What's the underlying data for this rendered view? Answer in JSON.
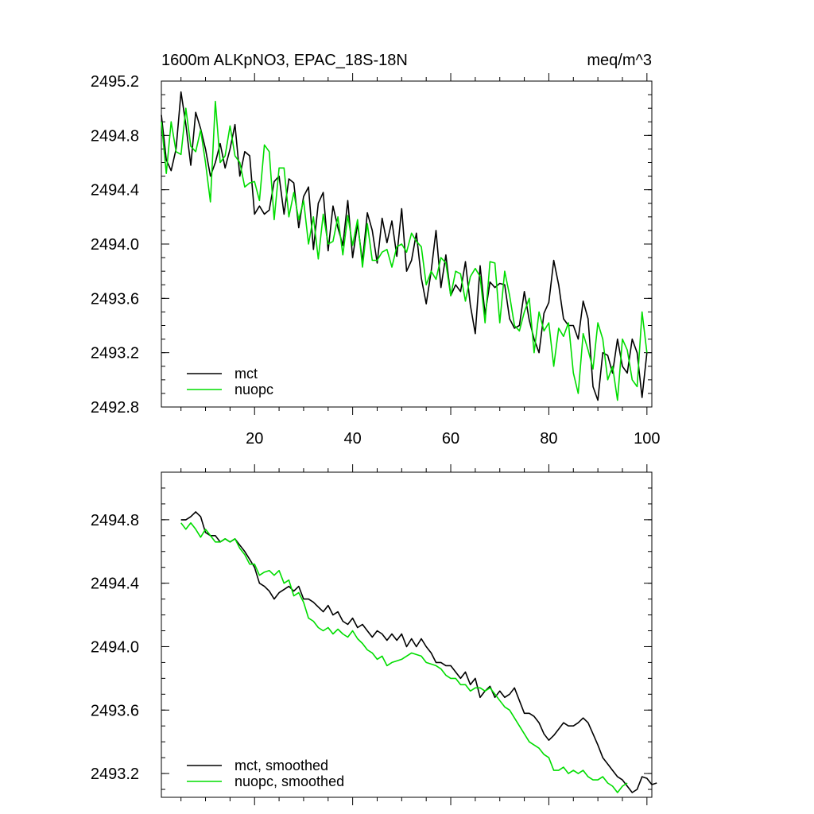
{
  "chart_data": [
    {
      "type": "line",
      "title": "1600m ALKpNO3, EPAC_18S-18N",
      "units": "meq/m^3",
      "xlim": [
        1,
        101
      ],
      "ylim": [
        2492.8,
        2495.2
      ],
      "yticks": [
        "2495.2",
        "2494.8",
        "2494.4",
        "2494.0",
        "2493.6",
        "2493.2",
        "2492.8"
      ],
      "xticks": [
        "20",
        "40",
        "60",
        "80",
        "100"
      ],
      "legend_position": "bottom-left",
      "series": [
        {
          "name": "mct",
          "color": "#000000",
          "values": [
            2494.95,
            2494.62,
            2494.54,
            2494.7,
            2495.12,
            2494.88,
            2494.58,
            2494.97,
            2494.85,
            2494.7,
            2494.5,
            2494.6,
            2494.74,
            2494.56,
            2494.7,
            2494.88,
            2494.5,
            2494.68,
            2494.65,
            2494.22,
            2494.28,
            2494.22,
            2494.25,
            2494.46,
            2494.5,
            2494.22,
            2494.48,
            2494.45,
            2494.12,
            2494.35,
            2494.42,
            2493.96,
            2494.3,
            2494.38,
            2493.95,
            2494.28,
            2494.12,
            2493.99,
            2494.32,
            2493.9,
            2494.15,
            2493.87,
            2494.23,
            2494.1,
            2493.86,
            2494.19,
            2494.01,
            2494.17,
            2493.91,
            2494.26,
            2493.8,
            2493.88,
            2494.08,
            2493.75,
            2493.56,
            2493.8,
            2494.1,
            2493.68,
            2493.92,
            2493.62,
            2493.7,
            2493.65,
            2493.87,
            2493.55,
            2493.34,
            2493.84,
            2493.48,
            2493.72,
            2493.68,
            2493.71,
            2493.7,
            2493.45,
            2493.38,
            2493.4,
            2493.65,
            2493.44,
            2493.3,
            2493.2,
            2493.49,
            2493.57,
            2493.88,
            2493.7,
            2493.45,
            2493.4,
            2493.4,
            2493.3,
            2493.58,
            2493.45,
            2492.95,
            2492.85,
            2493.2,
            2493.18,
            2493.05,
            2493.3,
            2493.1,
            2493.05,
            2493.3,
            2493.2,
            2492.87,
            2493.2
          ]
        },
        {
          "name": "nuopc",
          "color": "#00dd00",
          "values": [
            2494.9,
            2494.52,
            2494.9,
            2494.68,
            2494.66,
            2495.0,
            2494.72,
            2494.68,
            2494.84,
            2494.6,
            2494.31,
            2495.05,
            2494.6,
            2494.65,
            2494.87,
            2494.65,
            2494.6,
            2494.42,
            2494.45,
            2494.46,
            2494.32,
            2494.73,
            2494.68,
            2494.18,
            2494.56,
            2494.56,
            2494.2,
            2494.38,
            2494.18,
            2494.32,
            2494.0,
            2494.2,
            2493.89,
            2494.22,
            2494.0,
            2494.02,
            2494.2,
            2493.92,
            2494.21,
            2493.99,
            2494.18,
            2493.83,
            2494.15,
            2493.88,
            2493.88,
            2493.94,
            2493.96,
            2493.83,
            2493.98,
            2494.0,
            2493.94,
            2494.08,
            2494.02,
            2493.98,
            2493.7,
            2493.8,
            2493.74,
            2493.9,
            2493.86,
            2493.62,
            2493.8,
            2493.78,
            2493.58,
            2493.76,
            2493.82,
            2493.76,
            2493.42,
            2493.87,
            2493.86,
            2493.42,
            2493.8,
            2493.62,
            2493.4,
            2493.36,
            2493.5,
            2493.6,
            2493.2,
            2493.5,
            2493.36,
            2493.42,
            2493.1,
            2493.38,
            2493.32,
            2493.42,
            2493.05,
            2492.9,
            2493.34,
            2493.22,
            2493.08,
            2493.42,
            2493.3,
            2493.0,
            2493.1,
            2492.85,
            2493.3,
            2493.22,
            2493.0,
            2492.95,
            2493.5,
            2493.2
          ]
        }
      ]
    },
    {
      "type": "line",
      "title": "",
      "xlim": [
        1,
        101
      ],
      "ylim": [
        2493.05,
        2495.1
      ],
      "yticks": [
        "2494.8",
        "2494.4",
        "2494.0",
        "2493.6",
        "2493.2"
      ],
      "legend_position": "bottom-left",
      "series": [
        {
          "name": "mct, smoothed",
          "color": "#000000",
          "x_start": 5,
          "values": [
            2494.8,
            2494.8,
            2494.82,
            2494.85,
            2494.82,
            2494.72,
            2494.7,
            2494.7,
            2494.66,
            2494.68,
            2494.66,
            2494.68,
            2494.64,
            2494.6,
            2494.55,
            2494.5,
            2494.4,
            2494.38,
            2494.35,
            2494.3,
            2494.34,
            2494.36,
            2494.38,
            2494.35,
            2494.38,
            2494.3,
            2494.3,
            2494.28,
            2494.25,
            2494.22,
            2494.26,
            2494.2,
            2494.22,
            2494.16,
            2494.14,
            2494.18,
            2494.12,
            2494.14,
            2494.1,
            2494.06,
            2494.1,
            2494.08,
            2494.04,
            2494.08,
            2494.04,
            2494.08,
            2494.0,
            2494.05,
            2494.0,
            2494.05,
            2494.0,
            2493.96,
            2493.9,
            2493.9,
            2493.88,
            2493.88,
            2493.84,
            2493.8,
            2493.84,
            2493.76,
            2493.8,
            2493.68,
            2493.72,
            2493.75,
            2493.68,
            2493.72,
            2493.68,
            2493.7,
            2493.74,
            2493.66,
            2493.58,
            2493.58,
            2493.56,
            2493.52,
            2493.45,
            2493.41,
            2493.44,
            2493.48,
            2493.52,
            2493.5,
            2493.5,
            2493.52,
            2493.55,
            2493.52,
            2493.45,
            2493.38,
            2493.3,
            2493.26,
            2493.22,
            2493.18,
            2493.16,
            2493.12,
            2493.08,
            2493.1,
            2493.18,
            2493.17,
            2493.13,
            2493.14
          ]
        },
        {
          "name": "nuopc, smoothed",
          "color": "#00dd00",
          "x_start": 5,
          "values": [
            2494.78,
            2494.74,
            2494.78,
            2494.74,
            2494.69,
            2494.74,
            2494.7,
            2494.66,
            2494.66,
            2494.68,
            2494.66,
            2494.68,
            2494.62,
            2494.58,
            2494.52,
            2494.52,
            2494.45,
            2494.47,
            2494.48,
            2494.45,
            2494.48,
            2494.4,
            2494.42,
            2494.32,
            2494.34,
            2494.28,
            2494.18,
            2494.16,
            2494.12,
            2494.1,
            2494.12,
            2494.08,
            2494.11,
            2494.08,
            2494.06,
            2494.1,
            2494.05,
            2494.02,
            2493.98,
            2493.96,
            2493.92,
            2493.94,
            2493.88,
            2493.9,
            2493.91,
            2493.92,
            2493.94,
            2493.96,
            2493.95,
            2493.94,
            2493.9,
            2493.89,
            2493.88,
            2493.86,
            2493.82,
            2493.8,
            2493.8,
            2493.76,
            2493.76,
            2493.72,
            2493.74,
            2493.74,
            2493.72,
            2493.74,
            2493.7,
            2493.66,
            2493.62,
            2493.6,
            2493.55,
            2493.5,
            2493.45,
            2493.4,
            2493.38,
            2493.36,
            2493.32,
            2493.3,
            2493.22,
            2493.22,
            2493.24,
            2493.2,
            2493.22,
            2493.2,
            2493.22,
            2493.18,
            2493.16,
            2493.16,
            2493.18,
            2493.14,
            2493.12,
            2493.08,
            2493.12,
            2493.14
          ]
        }
      ]
    }
  ]
}
